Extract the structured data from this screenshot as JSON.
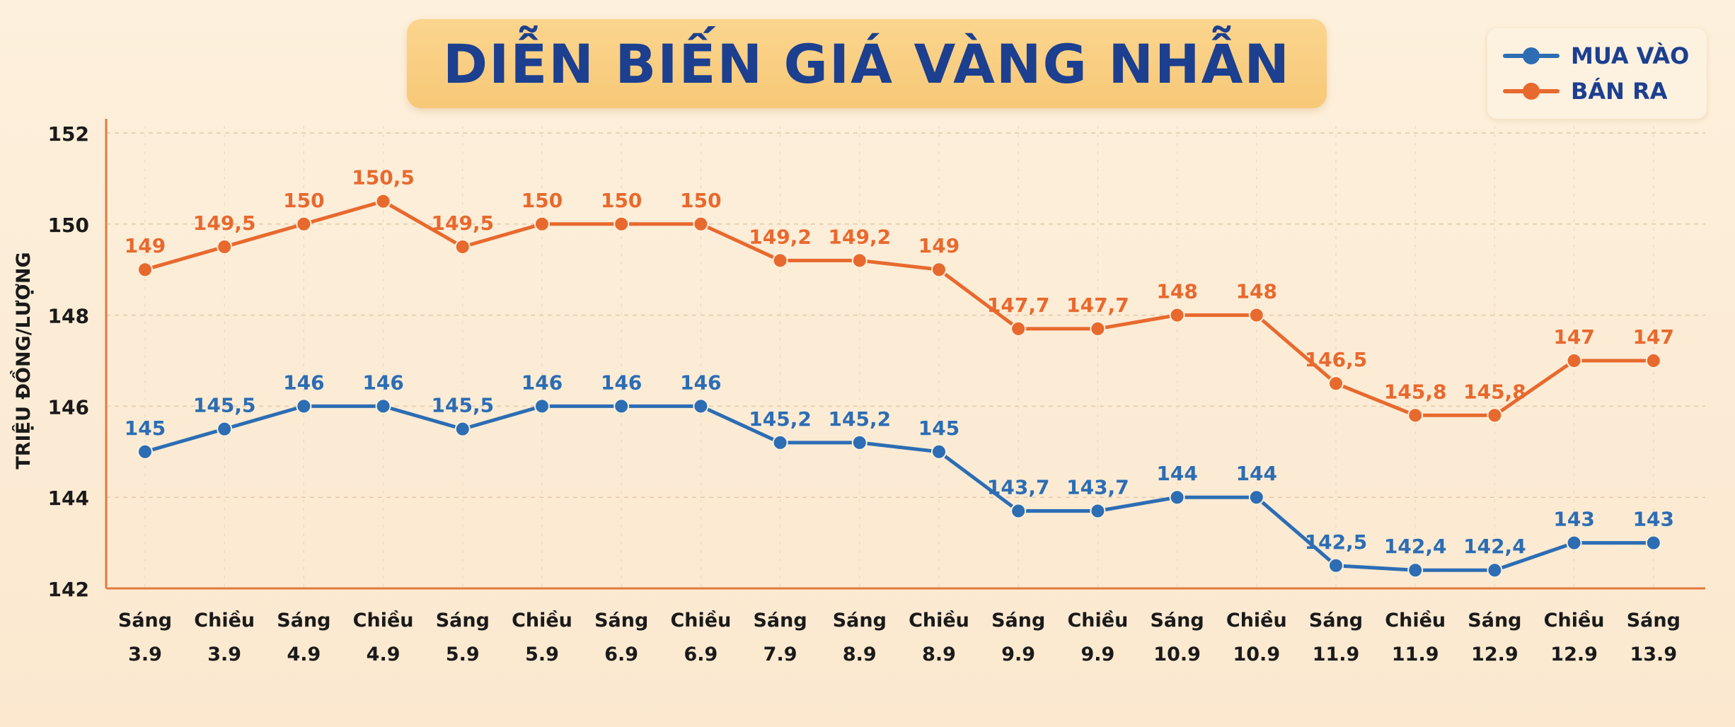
{
  "title": "DIỄN BIẾN GIÁ VÀNG NHẪN",
  "colors": {
    "buy": "#2c6db4",
    "sell": "#e8692e",
    "title": "#1c3f8f"
  },
  "legend": {
    "position": "top-right",
    "items": [
      "MUA VÀO",
      "BÁN RA"
    ]
  },
  "chart_data": {
    "type": "line",
    "title": "DIỄN BIẾN GIÁ VÀNG NHẪN",
    "ylabel": "TRIỆU ĐỒNG/LƯỢNG",
    "xlabel": "",
    "ylim": [
      142,
      152
    ],
    "yticks": [
      142,
      144,
      146,
      148,
      150,
      152
    ],
    "grid": true,
    "categories": [
      [
        "Sáng",
        "3.9"
      ],
      [
        "Chiều",
        "3.9"
      ],
      [
        "Sáng",
        "4.9"
      ],
      [
        "Chiều",
        "4.9"
      ],
      [
        "Sáng",
        "5.9"
      ],
      [
        "Chiều",
        "5.9"
      ],
      [
        "Sáng",
        "6.9"
      ],
      [
        "Chiều",
        "6.9"
      ],
      [
        "Sáng",
        "7.9"
      ],
      [
        "Sáng",
        "8.9"
      ],
      [
        "Chiều",
        "8.9"
      ],
      [
        "Sáng",
        "9.9"
      ],
      [
        "Chiều",
        "9.9"
      ],
      [
        "Sáng",
        "10.9"
      ],
      [
        "Chiều",
        "10.9"
      ],
      [
        "Sáng",
        "11.9"
      ],
      [
        "Chiều",
        "11.9"
      ],
      [
        "Sáng",
        "12.9"
      ],
      [
        "Chiều",
        "12.9"
      ],
      [
        "Sáng",
        "13.9"
      ]
    ],
    "series": [
      {
        "name": "MUA VÀO",
        "values": [
          145,
          145.5,
          146,
          146,
          145.5,
          146,
          146,
          146,
          145.2,
          145.2,
          145,
          143.7,
          143.7,
          144,
          144,
          142.5,
          142.4,
          142.4,
          143,
          143
        ],
        "labels": [
          "145",
          "145,5",
          "146",
          "146",
          "145,5",
          "146",
          "146",
          "146",
          "145,2",
          "145,2",
          "145",
          "143,7",
          "143,7",
          "144",
          "144",
          "142,5",
          "142,4",
          "142,4",
          "143",
          "143"
        ]
      },
      {
        "name": "BÁN RA",
        "values": [
          149,
          149.5,
          150,
          150.5,
          149.5,
          150,
          150,
          150,
          149.2,
          149.2,
          149,
          147.7,
          147.7,
          148,
          148,
          146.5,
          145.8,
          145.8,
          147,
          147
        ],
        "labels": [
          "149",
          "149,5",
          "150",
          "150,5",
          "149,5",
          "150",
          "150",
          "150",
          "149,2",
          "149,2",
          "149",
          "147,7",
          "147,7",
          "148",
          "148",
          "146,5",
          "145,8",
          "145,8",
          "147",
          "147"
        ]
      }
    ]
  }
}
